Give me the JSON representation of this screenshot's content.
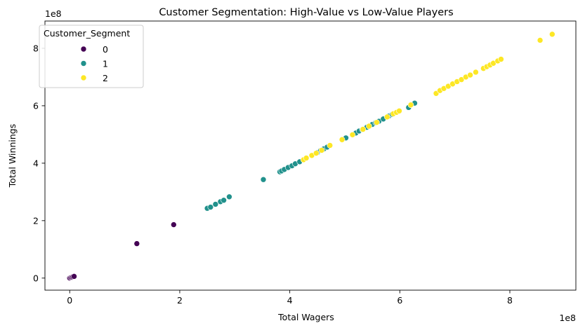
{
  "chart_data": {
    "type": "scatter",
    "title": "Customer Segmentation: High-Value vs Low-Value Players",
    "xlabel": "Total Wagers",
    "ylabel": "Total Winnings",
    "x_offset_label": "1e8",
    "y_offset_label": "1e8",
    "xlim": [
      -0.45,
      9.2
    ],
    "ylim": [
      -0.42,
      8.95
    ],
    "x_ticks": [
      0,
      2,
      4,
      6,
      8
    ],
    "y_ticks": [
      0,
      2,
      4,
      6,
      8
    ],
    "grid": false,
    "legend": {
      "title": "Customer_Segment",
      "position": "top-left"
    },
    "series": [
      {
        "name": "0",
        "color": "#440154",
        "points": [
          [
            0.0,
            0.0
          ],
          [
            0.02,
            0.02
          ],
          [
            0.04,
            0.03
          ],
          [
            0.06,
            0.05
          ],
          [
            0.08,
            0.06
          ],
          [
            1.22,
            1.2
          ],
          [
            1.89,
            1.86
          ]
        ]
      },
      {
        "name": "1",
        "color": "#21918c",
        "points": [
          [
            2.5,
            2.43
          ],
          [
            2.56,
            2.47
          ],
          [
            2.65,
            2.57
          ],
          [
            2.74,
            2.66
          ],
          [
            2.8,
            2.71
          ],
          [
            2.9,
            2.83
          ],
          [
            3.52,
            3.43
          ],
          [
            3.82,
            3.7
          ],
          [
            3.85,
            3.73
          ],
          [
            3.9,
            3.78
          ],
          [
            3.97,
            3.85
          ],
          [
            4.04,
            3.91
          ],
          [
            4.1,
            3.98
          ],
          [
            4.18,
            4.05
          ],
          [
            4.25,
            4.12
          ],
          [
            4.5,
            4.37
          ],
          [
            4.56,
            4.44
          ],
          [
            4.62,
            4.5
          ],
          [
            4.68,
            4.56
          ],
          [
            5.02,
            4.88
          ],
          [
            5.2,
            5.05
          ],
          [
            5.26,
            5.12
          ],
          [
            5.32,
            5.17
          ],
          [
            5.4,
            5.25
          ],
          [
            5.45,
            5.3
          ],
          [
            5.5,
            5.35
          ],
          [
            5.56,
            5.41
          ],
          [
            5.62,
            5.46
          ],
          [
            5.7,
            5.54
          ],
          [
            5.8,
            5.64
          ],
          [
            5.86,
            5.7
          ],
          [
            6.16,
            5.94
          ],
          [
            6.27,
            6.09
          ]
        ]
      },
      {
        "name": "2",
        "color": "#fde725",
        "points": [
          [
            4.25,
            4.12
          ],
          [
            4.3,
            4.18
          ],
          [
            4.4,
            4.27
          ],
          [
            4.48,
            4.35
          ],
          [
            4.58,
            4.45
          ],
          [
            4.73,
            4.62
          ],
          [
            4.95,
            4.82
          ],
          [
            5.14,
            4.99
          ],
          [
            5.33,
            5.18
          ],
          [
            5.44,
            5.29
          ],
          [
            5.58,
            5.42
          ],
          [
            5.77,
            5.61
          ],
          [
            5.88,
            5.72
          ],
          [
            5.94,
            5.77
          ],
          [
            5.99,
            5.82
          ],
          [
            6.2,
            6.03
          ],
          [
            6.66,
            6.43
          ],
          [
            6.73,
            6.53
          ],
          [
            6.8,
            6.6
          ],
          [
            6.88,
            6.68
          ],
          [
            6.96,
            6.76
          ],
          [
            7.04,
            6.84
          ],
          [
            7.12,
            6.91
          ],
          [
            7.2,
            7.0
          ],
          [
            7.28,
            7.07
          ],
          [
            7.38,
            7.17
          ],
          [
            7.52,
            7.3
          ],
          [
            7.58,
            7.36
          ],
          [
            7.64,
            7.42
          ],
          [
            7.7,
            7.48
          ],
          [
            7.78,
            7.56
          ],
          [
            7.84,
            7.62
          ],
          [
            8.55,
            8.28
          ],
          [
            8.77,
            8.49
          ]
        ]
      }
    ]
  }
}
